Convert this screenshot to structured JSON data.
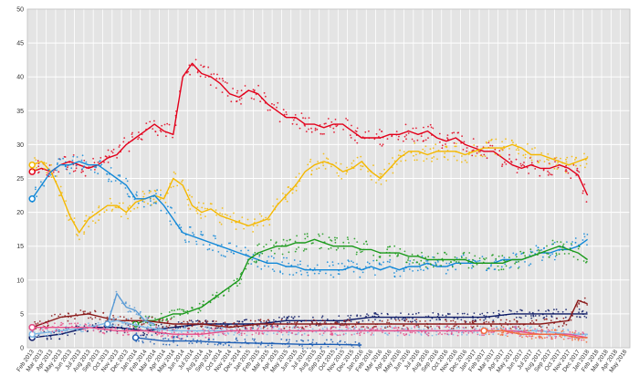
{
  "chart_data": {
    "type": "scatter",
    "title": "",
    "xlabel": "",
    "ylabel": "",
    "ylim": [
      0,
      50
    ],
    "y_ticks": [
      "0",
      "5",
      "10",
      "15",
      "20",
      "25",
      "30",
      "35",
      "40",
      "45",
      "50"
    ],
    "x_ticks": [
      "Feb 2013",
      "Mar 2013",
      "Apr 2013",
      "May 2013",
      "Jun 2013",
      "Jul 2013",
      "Aug 2013",
      "Sep 2013",
      "Oct 2013",
      "Nov 2013",
      "Dec 2013",
      "Jan 2014",
      "Feb 2014",
      "Mar 2014",
      "Apr 2014",
      "May 2014",
      "Jun 2014",
      "Jul 2014",
      "Aug 2014",
      "Sep 2014",
      "Oct 2014",
      "Nov 2014",
      "Dec 2014",
      "Jan 2015",
      "Feb 2015",
      "Mar 2015",
      "Apr 2015",
      "May 2015",
      "Jun 2015",
      "Jul 2015",
      "Aug 2015",
      "Sep 2015",
      "Oct 2015",
      "Nov 2015",
      "Dec 2015",
      "Jan 2016",
      "Feb 2016",
      "Mar 2016",
      "Apr 2016",
      "May 2016",
      "Jun 2016",
      "Jul 2016",
      "Aug 2016",
      "Sep 2016",
      "Oct 2016",
      "Nov 2016",
      "Dec 2016",
      "Jan 2017",
      "Feb 2017",
      "Mar 2017",
      "Apr 2017",
      "May 2017",
      "Jun 2017",
      "Jul 2017",
      "Aug 2017",
      "Sep 2017",
      "Oct 2017",
      "Nov 2017",
      "Dec 2017",
      "Jan 2018",
      "Feb 2018",
      "Mar 2018",
      "Apr 2018",
      "May 2018"
    ],
    "grid": true,
    "legend": "none",
    "background": "#e4e4e4",
    "gridline_color": "#ffffff",
    "series": [
      {
        "color": "#e3001b",
        "x": [
          0,
          1,
          2,
          3,
          4,
          5,
          6,
          7,
          8,
          9,
          10,
          11,
          12,
          13,
          14,
          15,
          16,
          17,
          18,
          19,
          20,
          21,
          22,
          23,
          24,
          25,
          26,
          27,
          28,
          29,
          30,
          31,
          32,
          33,
          34,
          35,
          36,
          37,
          38,
          39,
          40,
          41,
          42,
          43,
          44,
          45,
          46,
          47,
          48,
          49,
          50,
          51,
          52,
          53,
          54,
          55,
          56,
          57,
          58,
          59
        ],
        "values": [
          26,
          26.5,
          26,
          27,
          27.5,
          27,
          26.5,
          27,
          28,
          28.5,
          30,
          31,
          32,
          33,
          32,
          31.5,
          40,
          42,
          40.5,
          40,
          39,
          37.5,
          37,
          38,
          37.5,
          36,
          35,
          34,
          34,
          33,
          33,
          32.5,
          33,
          33,
          32,
          31,
          31,
          31,
          31.5,
          31.5,
          32,
          31.5,
          32,
          31,
          30.5,
          31,
          30,
          29.5,
          29,
          29,
          28,
          27,
          26.5,
          27,
          26.5,
          26.5,
          27,
          26.5,
          25.5,
          22.5
        ]
      },
      {
        "color": "#f5b800",
        "x": [
          0,
          1,
          2,
          3,
          4,
          5,
          6,
          7,
          8,
          9,
          10,
          11,
          12,
          13,
          14,
          15,
          16,
          17,
          18,
          19,
          20,
          21,
          22,
          23,
          24,
          25,
          26,
          27,
          28,
          29,
          30,
          31,
          32,
          33,
          34,
          35,
          36,
          37,
          38,
          39,
          40,
          41,
          42,
          43,
          44,
          45,
          46,
          47,
          48,
          49,
          50,
          51,
          52,
          53,
          54,
          55,
          56,
          57,
          58,
          59
        ],
        "values": [
          27,
          27.5,
          26,
          23,
          19.5,
          17,
          19,
          20,
          21,
          21,
          20,
          21.5,
          22,
          22.5,
          22,
          25,
          24,
          21,
          20,
          20.5,
          19.5,
          19,
          18.5,
          18,
          18.5,
          19,
          21,
          22.5,
          24,
          26,
          27,
          27.5,
          27,
          26,
          26.5,
          27.5,
          26,
          25,
          26.5,
          28,
          29,
          29,
          28.5,
          29,
          29,
          29,
          28.5,
          29,
          29.5,
          29.5,
          29.5,
          30,
          29.5,
          28.5,
          28.5,
          28,
          27.5,
          27,
          27.5,
          28
        ]
      },
      {
        "color": "#1188d8",
        "x": [
          0,
          1,
          2,
          3,
          4,
          5,
          6,
          7,
          8,
          9,
          10,
          11,
          12,
          13,
          14,
          15,
          16,
          17,
          18,
          19,
          20,
          21,
          22,
          23,
          24,
          25,
          26,
          27,
          28,
          29,
          30,
          31,
          32,
          33,
          34,
          35,
          36,
          37,
          38,
          39,
          40,
          41,
          42,
          43,
          44,
          45,
          46,
          47,
          48,
          49,
          50,
          51,
          52,
          53,
          54,
          55,
          56,
          57,
          58,
          59
        ],
        "values": [
          22,
          24,
          26,
          27,
          27,
          27.5,
          27,
          27,
          26,
          25,
          24,
          22,
          22,
          22.5,
          21,
          19,
          17,
          16.5,
          16,
          15.5,
          15,
          14.5,
          14,
          13.5,
          13,
          12.5,
          12.5,
          12,
          12,
          11.5,
          11.5,
          11.5,
          11.5,
          11.5,
          12,
          11.5,
          12,
          11.5,
          12,
          11.5,
          12,
          12,
          12.5,
          12,
          12,
          12.5,
          12.5,
          12.5,
          12.5,
          12.5,
          13,
          13,
          13,
          13.5,
          14,
          14,
          14.5,
          14.5,
          15,
          16
        ]
      },
      {
        "color": "#1a9a1a",
        "x": [
          11,
          12,
          13,
          14,
          15,
          16,
          17,
          18,
          19,
          20,
          21,
          22,
          23,
          24,
          25,
          26,
          27,
          28,
          29,
          30,
          31,
          32,
          33,
          34,
          35,
          36,
          37,
          38,
          39,
          40,
          41,
          42,
          43,
          44,
          45,
          46,
          47,
          48,
          49,
          50,
          51,
          52,
          53,
          54,
          55,
          56,
          57,
          58,
          59
        ],
        "values": [
          3.5,
          4,
          4,
          4.5,
          5,
          5,
          5.5,
          6,
          7,
          8,
          9,
          10,
          13,
          14,
          14.5,
          15,
          15,
          15.5,
          15.5,
          16,
          15.5,
          15,
          15,
          15,
          14.5,
          14.5,
          14,
          14,
          14,
          13.5,
          13.5,
          13,
          13,
          13,
          13,
          13,
          12.5,
          12.5,
          12.5,
          12.5,
          13,
          13,
          13.5,
          14,
          14.5,
          15,
          14.5,
          14,
          13
        ]
      },
      {
        "color": "#0d1a66",
        "x": [
          0,
          3,
          6,
          9,
          12,
          15,
          18,
          21,
          24,
          27,
          30,
          33,
          36,
          39,
          42,
          45,
          48,
          51,
          54,
          57,
          59
        ],
        "values": [
          1.5,
          2,
          3,
          3,
          2.5,
          3,
          3.5,
          3.5,
          3.5,
          4,
          4,
          4,
          4.5,
          4.5,
          4.5,
          4.5,
          4.5,
          5,
          5,
          5,
          5
        ]
      },
      {
        "color": "#8b1a1a",
        "x": [
          0,
          3,
          6,
          9,
          12,
          15,
          18,
          21,
          24,
          27,
          30,
          33,
          36,
          39,
          42,
          45,
          48,
          51,
          54,
          57,
          58,
          59
        ],
        "values": [
          3,
          4.5,
          5,
          4,
          4,
          3.5,
          3.5,
          3,
          3.5,
          3.5,
          3.5,
          3.5,
          3.5,
          3.5,
          3.5,
          3.5,
          3.5,
          3.5,
          3.5,
          4,
          7,
          6.5
        ]
      },
      {
        "color": "#7fb8e6",
        "x": [
          0,
          3,
          6,
          9,
          12,
          15,
          18,
          21,
          24,
          27,
          30,
          33,
          36,
          39,
          42,
          45,
          48,
          51,
          54,
          57,
          59
        ],
        "values": [
          2,
          2.5,
          3,
          4,
          3,
          2.5,
          2.5,
          2.5,
          2.5,
          2.5,
          2.5,
          2.5,
          2.5,
          2.5,
          2.5,
          2.5,
          2.5,
          2.5,
          2.5,
          2,
          2
        ]
      },
      {
        "color": "#e84d8a",
        "x": [
          0,
          3,
          6,
          9,
          12,
          15,
          18,
          21,
          24,
          27,
          30,
          33,
          36,
          39,
          42,
          45,
          48,
          51,
          54,
          57,
          59
        ],
        "values": [
          3,
          3,
          3,
          2.5,
          2.5,
          2,
          2,
          2.5,
          2.5,
          2.5,
          2.5,
          2.5,
          2.5,
          2.5,
          2.5,
          2.5,
          2.5,
          2.5,
          2,
          2,
          1.5
        ]
      },
      {
        "color": "#1f5fb5",
        "x": [
          11,
          14,
          17,
          20,
          23,
          26,
          29,
          32,
          35
        ],
        "values": [
          1.5,
          1,
          1,
          0.8,
          0.7,
          0.6,
          0.5,
          0.5,
          0.4
        ]
      },
      {
        "color": "#5a9bd5",
        "x": [
          8,
          9,
          10,
          11,
          12,
          13
        ],
        "values": [
          3.5,
          8,
          6,
          5.5,
          4,
          3.5
        ]
      },
      {
        "color": "#f26d3d",
        "x": [
          48,
          50,
          52,
          54,
          56,
          58,
          59
        ],
        "values": [
          2.5,
          2.5,
          2,
          2,
          2,
          1.5,
          1.5
        ]
      }
    ]
  }
}
